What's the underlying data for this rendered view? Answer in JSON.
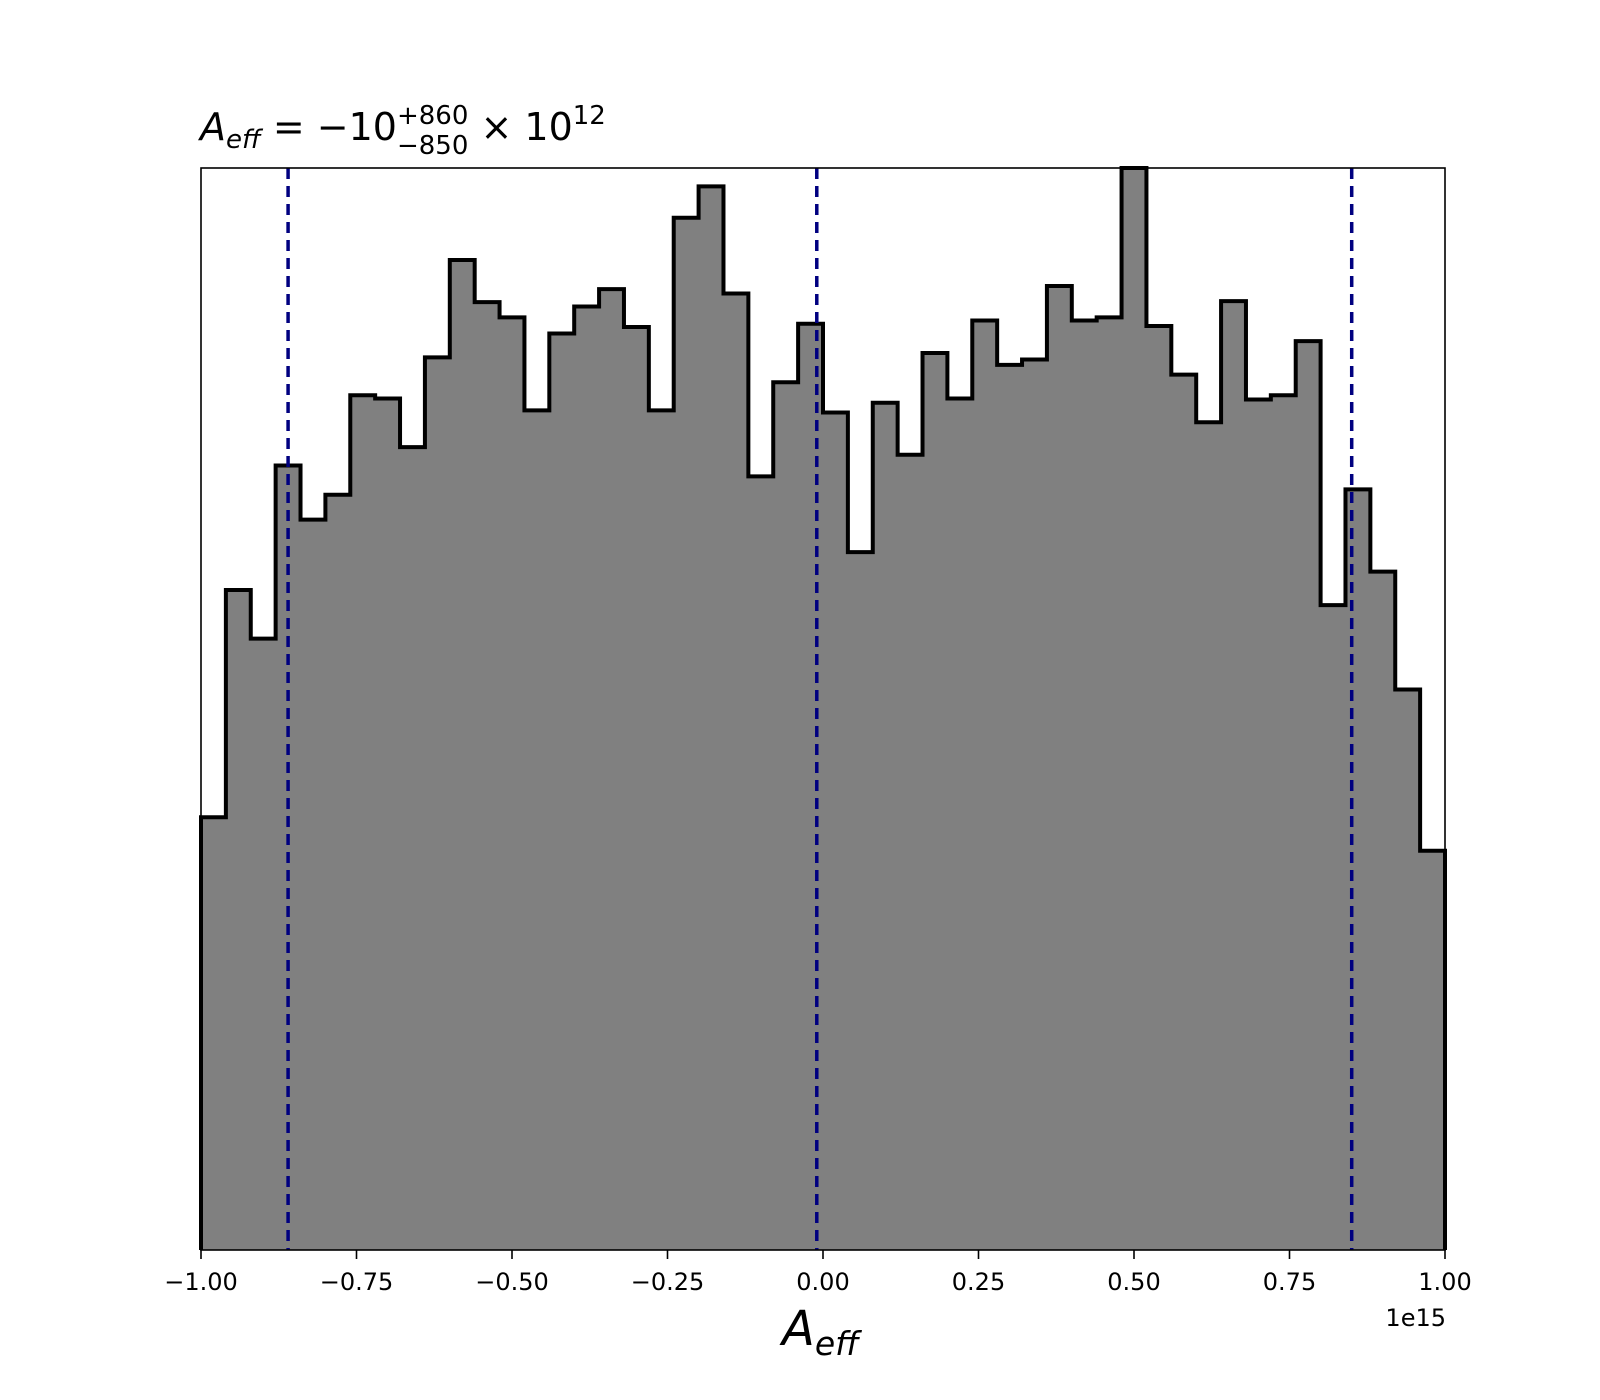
{
  "chart_data": {
    "type": "histogram",
    "title": {
      "symbol": "A",
      "symbol_sub": "eff",
      "equals": " = ",
      "value": "−10",
      "upper": "+860",
      "lower": "−850",
      "times": " × 10",
      "exponent": "12"
    },
    "xlabel": {
      "symbol": "A",
      "symbol_sub": "eff"
    },
    "xlim": [
      -1.0,
      1.0
    ],
    "x_multiplier_label": "1e15",
    "xticks": [
      -1.0,
      -0.75,
      -0.5,
      -0.25,
      0.0,
      0.25,
      0.5,
      0.75,
      1.0
    ],
    "xtick_labels": [
      "−1.00",
      "−0.75",
      "−0.50",
      "−0.25",
      "0.00",
      "0.25",
      "0.50",
      "0.75",
      "1.00"
    ],
    "yticks_shown": false,
    "ylim": [
      0,
      1.0
    ],
    "bin_edges": [
      -1.0,
      -0.96,
      -0.92,
      -0.88,
      -0.84,
      -0.8,
      -0.76,
      -0.72,
      -0.68,
      -0.64,
      -0.6,
      -0.56,
      -0.52,
      -0.48,
      -0.44,
      -0.4,
      -0.36,
      -0.32,
      -0.28,
      -0.24,
      -0.2,
      -0.16,
      -0.12,
      -0.08,
      -0.04,
      0.0,
      0.04,
      0.08,
      0.12,
      0.16,
      0.2,
      0.24,
      0.28,
      0.32,
      0.36,
      0.4,
      0.44,
      0.48,
      0.52,
      0.56,
      0.6,
      0.64,
      0.68,
      0.72,
      0.76,
      0.8,
      0.84,
      0.88,
      0.92,
      0.96,
      1.0
    ],
    "counts": [
      0.4,
      0.61,
      0.565,
      0.725,
      0.675,
      0.698,
      0.79,
      0.787,
      0.742,
      0.825,
      0.915,
      0.876,
      0.862,
      0.776,
      0.847,
      0.872,
      0.888,
      0.853,
      0.776,
      0.954,
      0.983,
      0.884,
      0.715,
      0.802,
      0.856,
      0.774,
      0.645,
      0.783,
      0.735,
      0.829,
      0.787,
      0.859,
      0.818,
      0.823,
      0.891,
      0.859,
      0.862,
      1.0,
      0.854,
      0.809,
      0.765,
      0.877,
      0.786,
      0.79,
      0.84,
      0.596,
      0.703,
      0.627,
      0.518,
      0.369
    ],
    "fill_color": "#808080",
    "edge_color": "#000000",
    "vlines": [
      {
        "x": -0.86,
        "style": "dashed"
      },
      {
        "x": -0.01,
        "style": "dashed"
      },
      {
        "x": 0.85,
        "style": "dashed"
      }
    ],
    "vline_color": "#000080",
    "grid": false
  }
}
